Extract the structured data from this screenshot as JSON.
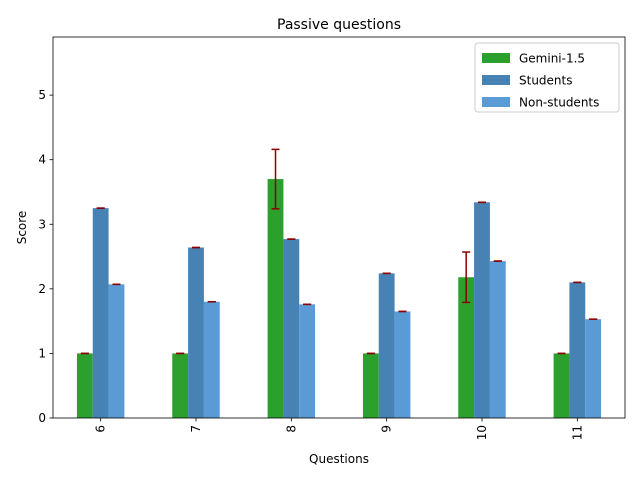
{
  "chart_data": {
    "type": "bar",
    "title": "Passive questions",
    "xlabel": "Questions",
    "ylabel": "Score",
    "ylim": [
      0,
      5.9
    ],
    "yticks": [
      0,
      1,
      2,
      3,
      4,
      5
    ],
    "categories": [
      "6",
      "7",
      "8",
      "9",
      "10",
      "11"
    ],
    "grid": false,
    "legend_position": "top-right",
    "error_bar_color": "#8b0000",
    "series": [
      {
        "name": "Gemini-1.5",
        "color": "#2ca02c",
        "values": [
          1.0,
          1.0,
          3.7,
          1.0,
          2.18,
          1.0
        ],
        "errors": [
          0.0,
          0.0,
          0.46,
          0.0,
          0.39,
          0.0
        ]
      },
      {
        "name": "Students",
        "color": "#4682b4",
        "values": [
          3.25,
          2.64,
          2.77,
          2.24,
          3.34,
          2.1
        ],
        "errors": [
          0.0,
          0.0,
          0.0,
          0.0,
          0.0,
          0.0
        ]
      },
      {
        "name": "Non-students",
        "color": "#5b9bd5",
        "values": [
          2.07,
          1.8,
          1.76,
          1.65,
          2.43,
          1.53
        ],
        "errors": [
          0.0,
          0.0,
          0.0,
          0.0,
          0.0,
          0.0
        ]
      }
    ]
  }
}
